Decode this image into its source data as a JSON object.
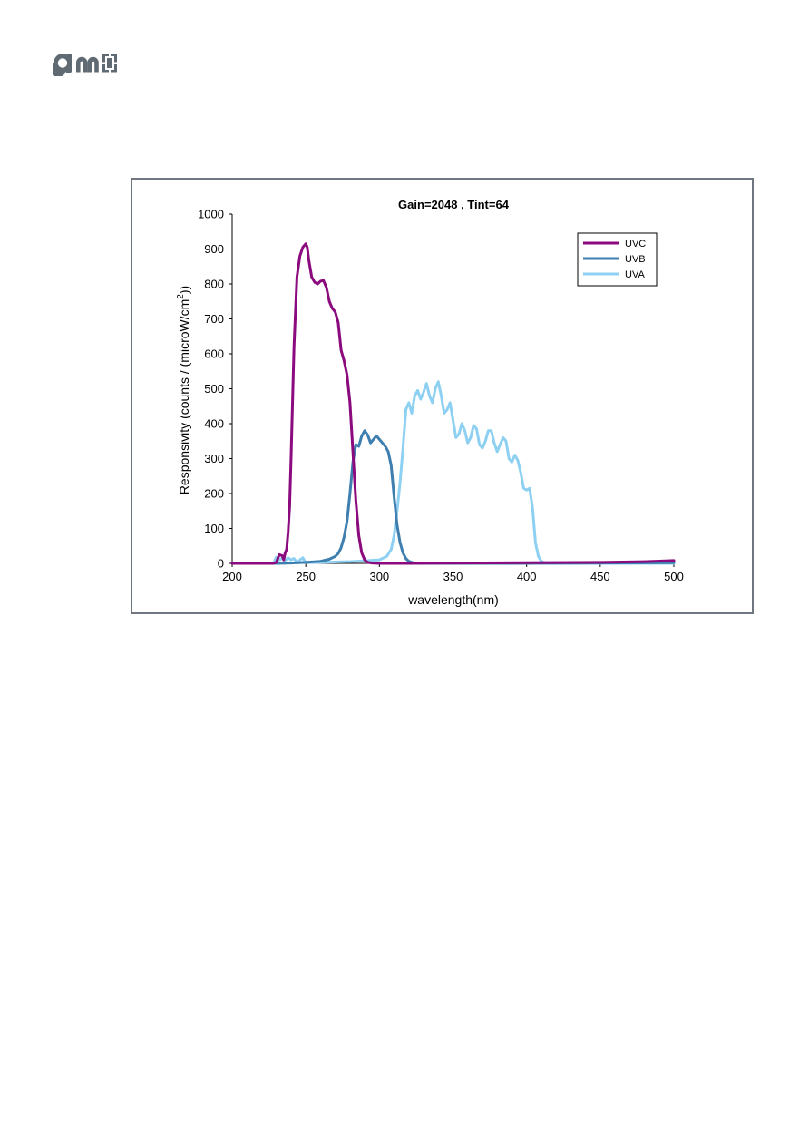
{
  "logo": {
    "text": "ams",
    "color": "#5f6a72"
  },
  "chart_data": {
    "type": "line",
    "title": "Gain=2048  ,  Tint=64",
    "xlabel": "wavelength(nm)",
    "ylabel_prefix": "Responsivity (counts / (microW/cm",
    "ylabel_sup": "2",
    "ylabel_suffix": "))",
    "xlim": [
      200,
      500
    ],
    "ylim": [
      0,
      1000
    ],
    "xticks": [
      200,
      250,
      300,
      350,
      400,
      450,
      500
    ],
    "yticks": [
      0,
      100,
      200,
      300,
      400,
      500,
      600,
      700,
      800,
      900,
      1000
    ],
    "grid": false,
    "legend_position": "top-right",
    "series": [
      {
        "name": "UVC",
        "color": "#8b0a7e",
        "x": [
          200,
          228,
          230,
          232,
          234,
          235,
          236,
          237,
          238,
          239,
          240,
          242,
          244,
          246,
          248,
          250,
          251,
          252,
          254,
          256,
          258,
          260,
          262,
          264,
          266,
          268,
          270,
          272,
          274,
          276,
          278,
          280,
          282,
          284,
          286,
          288,
          290,
          292,
          295,
          300,
          320,
          350,
          400,
          450,
          480,
          500
        ],
        "y": [
          0,
          0,
          3,
          25,
          22,
          10,
          30,
          40,
          90,
          160,
          300,
          620,
          820,
          880,
          905,
          915,
          905,
          870,
          820,
          805,
          800,
          808,
          810,
          790,
          750,
          730,
          720,
          690,
          610,
          580,
          540,
          460,
          320,
          180,
          80,
          30,
          10,
          3,
          1,
          0,
          0,
          1,
          2,
          3,
          5,
          8
        ]
      },
      {
        "name": "UVB",
        "color": "#3f7fb0",
        "x": [
          200,
          230,
          240,
          250,
          260,
          266,
          270,
          272,
          274,
          276,
          278,
          280,
          282,
          284,
          286,
          288,
          290,
          292,
          294,
          296,
          298,
          300,
          302,
          304,
          306,
          308,
          310,
          312,
          314,
          316,
          318,
          320,
          322,
          324,
          326,
          330,
          340,
          400,
          500
        ],
        "y": [
          0,
          0,
          1,
          3,
          6,
          12,
          20,
          28,
          45,
          75,
          120,
          200,
          290,
          340,
          335,
          365,
          380,
          368,
          345,
          355,
          365,
          355,
          345,
          335,
          320,
          280,
          190,
          110,
          60,
          30,
          14,
          6,
          3,
          1,
          0,
          0,
          0,
          0,
          2
        ]
      },
      {
        "name": "UVA",
        "color": "#8ed0f2",
        "x": [
          200,
          228,
          230,
          232,
          234,
          236,
          238,
          240,
          242,
          244,
          246,
          248,
          250,
          260,
          280,
          300,
          305,
          308,
          310,
          312,
          314,
          316,
          318,
          320,
          322,
          324,
          326,
          328,
          330,
          332,
          334,
          336,
          338,
          340,
          342,
          344,
          346,
          348,
          350,
          352,
          354,
          356,
          358,
          360,
          362,
          364,
          366,
          368,
          370,
          372,
          374,
          376,
          378,
          380,
          382,
          384,
          386,
          388,
          390,
          392,
          394,
          396,
          398,
          400,
          402,
          404,
          406,
          408,
          410,
          412,
          414,
          416,
          418,
          420,
          425,
          430,
          450,
          480,
          500
        ],
        "y": [
          0,
          0,
          18,
          10,
          15,
          8,
          16,
          10,
          14,
          2,
          10,
          16,
          2,
          3,
          5,
          10,
          20,
          40,
          80,
          150,
          230,
          330,
          440,
          460,
          430,
          480,
          495,
          470,
          490,
          515,
          480,
          460,
          500,
          520,
          480,
          430,
          440,
          460,
          410,
          360,
          370,
          400,
          380,
          345,
          360,
          395,
          385,
          340,
          330,
          350,
          380,
          380,
          345,
          320,
          340,
          360,
          350,
          300,
          290,
          310,
          295,
          260,
          215,
          210,
          215,
          160,
          60,
          20,
          6,
          2,
          1,
          0,
          0,
          0,
          0,
          0,
          0,
          0,
          0
        ]
      }
    ]
  }
}
